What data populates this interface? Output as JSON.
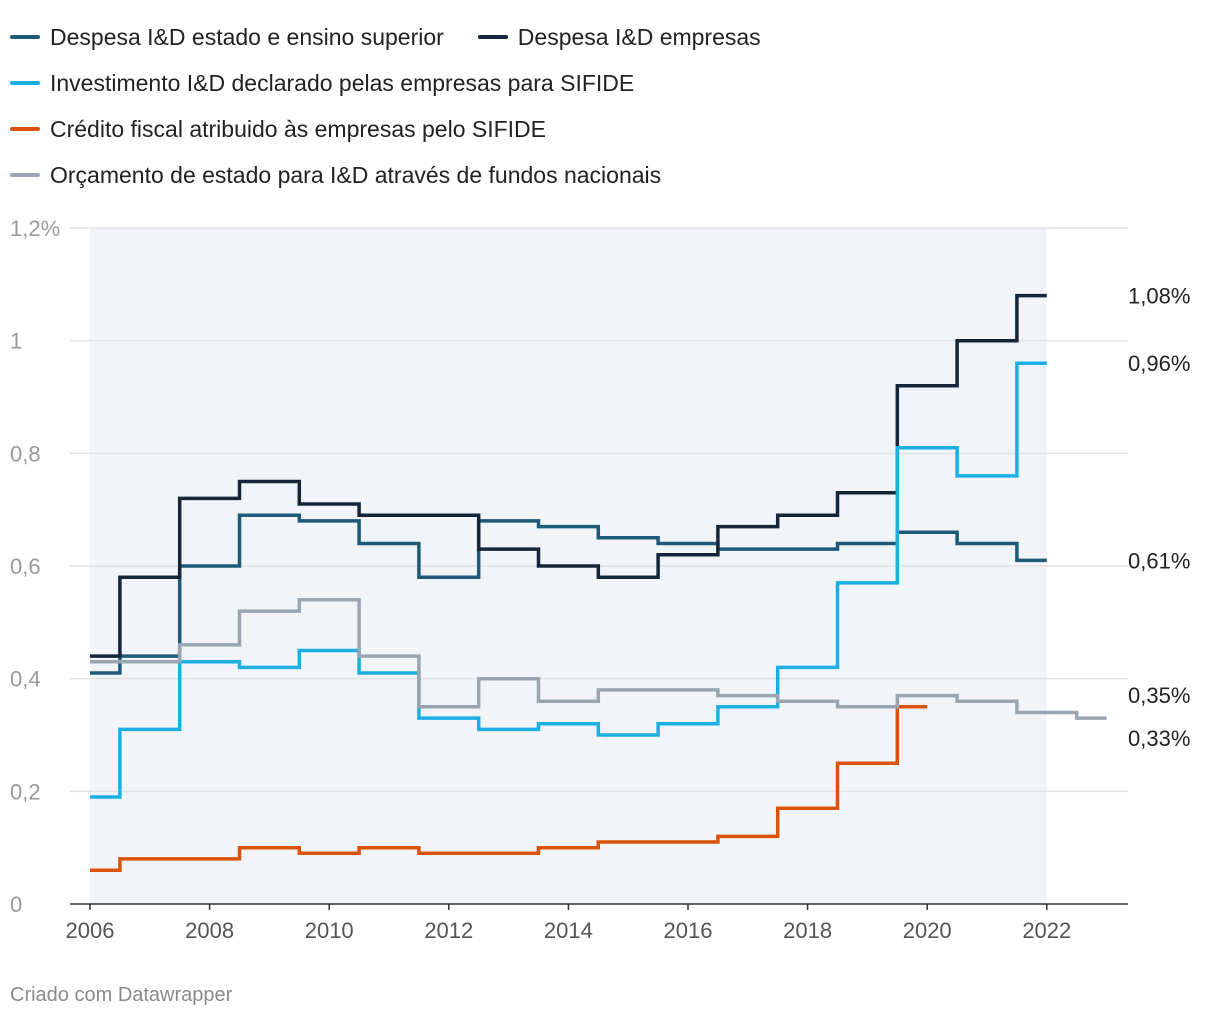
{
  "chart_data": {
    "type": "line",
    "step": true,
    "title": "",
    "xlabel": "",
    "ylabel": "",
    "xlim": [
      2006,
      2023
    ],
    "ylim": [
      0,
      1.2
    ],
    "x_ticks": [
      2006,
      2008,
      2010,
      2012,
      2014,
      2016,
      2018,
      2020,
      2022
    ],
    "x_tick_labels": [
      "2006",
      "2008",
      "2010",
      "2012",
      "2014",
      "2016",
      "2018",
      "2020",
      "2022"
    ],
    "y_ticks": [
      0,
      0.2,
      0.4,
      0.6,
      0.8,
      1.0,
      1.2
    ],
    "y_tick_labels": [
      "0",
      "0,2",
      "0,4",
      "0,6",
      "0,8",
      "1",
      "1,2%"
    ],
    "grid": true,
    "legend_position": "top",
    "shaded_area": {
      "x_start": 2006,
      "x_end": 2022,
      "color": "#f1f5f9"
    },
    "series": [
      {
        "name": "Despesa I&D estado e ensino superior",
        "color": "#1d5b79",
        "x": [
          2006,
          2007,
          2008,
          2009,
          2010,
          2011,
          2012,
          2013,
          2014,
          2015,
          2016,
          2017,
          2018,
          2019,
          2020,
          2021,
          2022
        ],
        "values": [
          0.41,
          0.44,
          0.6,
          0.69,
          0.68,
          0.64,
          0.58,
          0.68,
          0.67,
          0.65,
          0.64,
          0.63,
          0.63,
          0.64,
          0.66,
          0.64,
          0.61
        ],
        "end_label": "0,61%"
      },
      {
        "name": "Despesa I&D empresas",
        "color": "#15263a",
        "x": [
          2006,
          2007,
          2008,
          2009,
          2010,
          2011,
          2012,
          2013,
          2014,
          2015,
          2016,
          2017,
          2018,
          2019,
          2020,
          2021,
          2022
        ],
        "values": [
          0.44,
          0.58,
          0.72,
          0.75,
          0.71,
          0.69,
          0.69,
          0.63,
          0.6,
          0.58,
          0.62,
          0.67,
          0.69,
          0.73,
          0.92,
          1.0,
          1.08
        ],
        "end_label": "1,08%"
      },
      {
        "name": "Investimento I&D declarado pelas empresas para SIFIDE",
        "color": "#1ab0e3",
        "x": [
          2006,
          2007,
          2008,
          2009,
          2010,
          2011,
          2012,
          2013,
          2014,
          2015,
          2016,
          2017,
          2018,
          2019,
          2020,
          2021,
          2022
        ],
        "values": [
          0.19,
          0.31,
          0.43,
          0.42,
          0.45,
          0.41,
          0.33,
          0.31,
          0.32,
          0.3,
          0.32,
          0.35,
          0.42,
          0.57,
          0.81,
          0.76,
          0.96
        ],
        "end_label": "0,96%"
      },
      {
        "name": "Crédito fiscal atribuido às empresas pelo SIFIDE",
        "color": "#dc5208",
        "x": [
          2006,
          2007,
          2008,
          2009,
          2010,
          2011,
          2012,
          2013,
          2014,
          2015,
          2016,
          2017,
          2018,
          2019,
          2020
        ],
        "values": [
          0.06,
          0.08,
          0.08,
          0.1,
          0.09,
          0.1,
          0.09,
          0.09,
          0.1,
          0.11,
          0.11,
          0.12,
          0.17,
          0.25,
          0.35
        ],
        "end_label": "0,35%"
      },
      {
        "name": "Orçamento de estado para I&D através de fundos nacionais",
        "color": "#99a6b1",
        "x": [
          2006,
          2007,
          2008,
          2009,
          2010,
          2011,
          2012,
          2013,
          2014,
          2015,
          2016,
          2017,
          2018,
          2019,
          2020,
          2021,
          2022,
          2023
        ],
        "values": [
          0.43,
          0.43,
          0.46,
          0.52,
          0.54,
          0.44,
          0.35,
          0.4,
          0.36,
          0.38,
          0.38,
          0.37,
          0.36,
          0.35,
          0.37,
          0.36,
          0.34,
          0.33
        ],
        "end_label": "0,33%"
      }
    ],
    "source_note": "Criado com Datawrapper"
  },
  "legend_rows": [
    [
      0,
      1
    ],
    [
      2
    ],
    [
      3
    ],
    [
      4
    ]
  ]
}
